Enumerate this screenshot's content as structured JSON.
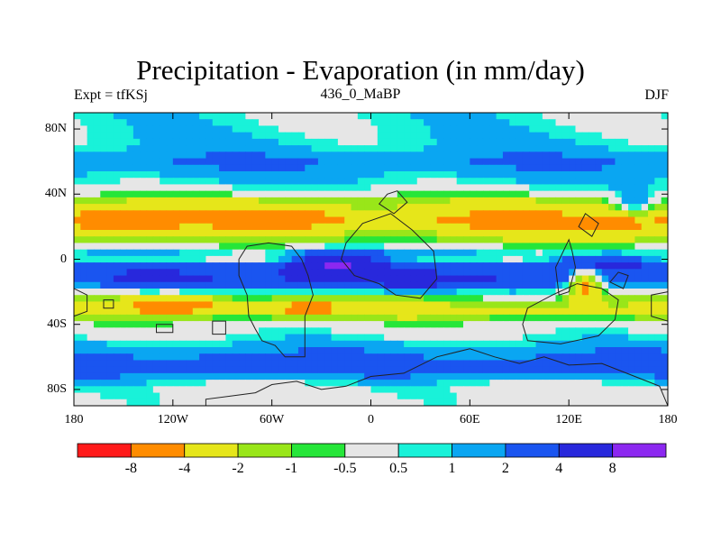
{
  "title": "Precipitation - Evaporation (in mm/day)",
  "subtitle_left": "Expt = tfKSj",
  "subtitle_center": "436_0_MaBP",
  "subtitle_right": "DJF",
  "lat_labels": [
    "80N",
    "40N",
    "0",
    "40S",
    "80S"
  ],
  "lon_labels": [
    "180",
    "120W",
    "60W",
    "0",
    "60E",
    "120E",
    "180"
  ],
  "colorbar": {
    "colors": [
      "#ff1a1a",
      "#ff8c00",
      "#e6e61a",
      "#99e619",
      "#26e639",
      "#e6e6e6",
      "#19f2d9",
      "#0aa6f2",
      "#1a55f0",
      "#2828dc",
      "#8c28f0"
    ],
    "labels": [
      "-8",
      "-4",
      "-2",
      "-1",
      "-0.5",
      "0.5",
      "1",
      "2",
      "4",
      "8"
    ]
  },
  "chart_data": {
    "type": "heatmap",
    "title": "Precipitation - Evaporation (in mm/day)",
    "variable": "P-E",
    "units": "mm/day",
    "season": "DJF",
    "levels": [
      -8,
      -4,
      -2,
      -1,
      -0.5,
      0.5,
      1,
      2,
      4,
      8
    ],
    "lon_range": [
      -180,
      180
    ],
    "lat_range": [
      -90,
      90
    ],
    "lat_ticks": [
      80,
      40,
      0,
      -40,
      -80
    ],
    "lon_ticks": [
      -180,
      -120,
      -60,
      0,
      60,
      120,
      180
    ],
    "bands": [
      {
        "lat": 82,
        "value": 0.7
      },
      {
        "lat": 70,
        "value": 1.0
      },
      {
        "lat": 60,
        "value": 2.0
      },
      {
        "lat": 50,
        "value": 1.2
      },
      {
        "lat": 42,
        "value": 0.2
      },
      {
        "lat": 36,
        "value": -1.5
      },
      {
        "lat": 30,
        "value": -2.5
      },
      {
        "lat": 24,
        "value": -4.0
      },
      {
        "lat": 16,
        "value": -2.2
      },
      {
        "lat": 10,
        "value": -1.0
      },
      {
        "lat": 5,
        "value": 0.8
      },
      {
        "lat": 0,
        "value": 0.3
      },
      {
        "lat": -5,
        "value": 3.0
      },
      {
        "lat": -12,
        "value": 3.5
      },
      {
        "lat": -20,
        "value": 0.5
      },
      {
        "lat": -26,
        "value": -1.5
      },
      {
        "lat": -32,
        "value": -2.5
      },
      {
        "lat": -38,
        "value": -0.3
      },
      {
        "lat": -46,
        "value": 0.3
      },
      {
        "lat": -55,
        "value": 1.5
      },
      {
        "lat": -63,
        "value": 2.3
      },
      {
        "lat": -70,
        "value": 2.0
      },
      {
        "lat": -78,
        "value": 0.2
      },
      {
        "lat": -90,
        "value": 0.0
      }
    ],
    "anomalies": [
      {
        "lon": -150,
        "lat": 24,
        "rlon": 28,
        "rlat": 7,
        "value": -7.0
      },
      {
        "lon": -60,
        "lat": 26,
        "rlon": 35,
        "rlat": 7,
        "value": -6.0
      },
      {
        "lon": 90,
        "lat": 24,
        "rlon": 28,
        "rlat": 8,
        "value": -6.0
      },
      {
        "lon": 150,
        "lat": 22,
        "rlon": 20,
        "rlat": 8,
        "value": -5.0
      },
      {
        "lon": -135,
        "lat": -12,
        "rlon": 22,
        "rlat": 5,
        "value": 5.0
      },
      {
        "lon": -20,
        "lat": -5,
        "rlon": 28,
        "rlat": 9,
        "value": 8.5
      },
      {
        "lon": 25,
        "lat": -14,
        "rlon": 22,
        "rlat": 5,
        "value": 6.0
      },
      {
        "lon": 140,
        "lat": -3,
        "rlon": 28,
        "rlat": 5,
        "value": 6.0
      },
      {
        "lon": -120,
        "lat": -28,
        "rlon": 30,
        "rlat": 5,
        "value": -6.0
      },
      {
        "lon": -38,
        "lat": -30,
        "rlon": 25,
        "rlat": 5,
        "value": -5.0
      },
      {
        "lon": 20,
        "lat": -32,
        "rlon": 18,
        "rlat": 4,
        "value": -3.0
      },
      {
        "lon": 130,
        "lat": -18,
        "rlon": 10,
        "rlat": 12,
        "value": -4.5
      },
      {
        "lon": -90,
        "lat": -66,
        "rlon": 45,
        "rlat": 6,
        "value": 3.0
      },
      {
        "lon": 100,
        "lat": -66,
        "rlon": 50,
        "rlat": 5,
        "value": 3.0
      },
      {
        "lon": 160,
        "lat": 36,
        "rlon": 12,
        "rlat": 8,
        "value": 2.0
      },
      {
        "lon": 170,
        "lat": 78,
        "rlon": 12,
        "rlat": 6,
        "value": 0.0
      }
    ],
    "continents": [
      [
        [
          -40,
          -60
        ],
        [
          -52,
          -60
        ],
        [
          -58,
          -53
        ],
        [
          -66,
          -50
        ],
        [
          -70,
          -43
        ],
        [
          -74,
          -35
        ],
        [
          -75,
          -22
        ],
        [
          -80,
          -10
        ],
        [
          -80,
          0
        ],
        [
          -75,
          8
        ],
        [
          -62,
          10
        ],
        [
          -48,
          8
        ],
        [
          -42,
          0
        ],
        [
          -38,
          -10
        ],
        [
          -35,
          -22
        ],
        [
          -40,
          -35
        ]
      ],
      [
        [
          -15,
          10
        ],
        [
          -18,
          0
        ],
        [
          -10,
          -10
        ],
        [
          5,
          -15
        ],
        [
          15,
          -22
        ],
        [
          30,
          -24
        ],
        [
          40,
          -12
        ],
        [
          38,
          5
        ],
        [
          25,
          18
        ],
        [
          12,
          28
        ],
        [
          -5,
          22
        ]
      ],
      [
        [
          95,
          -30
        ],
        [
          92,
          -40
        ],
        [
          95,
          -50
        ],
        [
          115,
          -52
        ],
        [
          138,
          -47
        ],
        [
          148,
          -37
        ],
        [
          150,
          -25
        ],
        [
          140,
          -18
        ],
        [
          125,
          -15
        ],
        [
          110,
          -22
        ]
      ],
      [
        [
          -100,
          -90
        ],
        [
          -100,
          -86
        ],
        [
          -85,
          -84
        ],
        [
          -70,
          -82
        ],
        [
          -60,
          -77
        ],
        [
          -45,
          -75
        ],
        [
          -30,
          -80
        ],
        [
          -15,
          -78
        ],
        [
          0,
          -72
        ],
        [
          20,
          -70
        ],
        [
          40,
          -60
        ],
        [
          60,
          -55
        ],
        [
          75,
          -60
        ],
        [
          90,
          -64
        ],
        [
          105,
          -60
        ],
        [
          120,
          -65
        ],
        [
          140,
          -64
        ],
        [
          160,
          -72
        ],
        [
          175,
          -78
        ],
        [
          180,
          -90
        ]
      ],
      [
        [
          120,
          12
        ],
        [
          112,
          -5
        ],
        [
          114,
          -22
        ],
        [
          120,
          -20
        ],
        [
          124,
          -5
        ],
        [
          122,
          5
        ]
      ],
      [
        [
          180,
          -20
        ],
        [
          170,
          -22
        ],
        [
          170,
          -35
        ],
        [
          180,
          -38
        ]
      ],
      [
        [
          -180,
          -18
        ],
        [
          -172,
          -22
        ],
        [
          -172,
          -32
        ],
        [
          -180,
          -35
        ]
      ],
      [
        [
          -162,
          -25
        ],
        [
          -156,
          -25
        ],
        [
          -156,
          -30
        ],
        [
          -162,
          -30
        ]
      ],
      [
        [
          -130,
          -40
        ],
        [
          -120,
          -40
        ],
        [
          -120,
          -45
        ],
        [
          -130,
          -45
        ]
      ],
      [
        [
          -96,
          -38
        ],
        [
          -88,
          -38
        ],
        [
          -88,
          -46
        ],
        [
          -96,
          -46
        ]
      ],
      [
        [
          10,
          40
        ],
        [
          5,
          34
        ],
        [
          14,
          28
        ],
        [
          22,
          35
        ],
        [
          16,
          42
        ]
      ],
      [
        [
          130,
          28
        ],
        [
          126,
          20
        ],
        [
          134,
          14
        ],
        [
          138,
          22
        ]
      ],
      [
        [
          150,
          -8
        ],
        [
          145,
          -14
        ],
        [
          153,
          -18
        ],
        [
          156,
          -10
        ]
      ]
    ]
  }
}
